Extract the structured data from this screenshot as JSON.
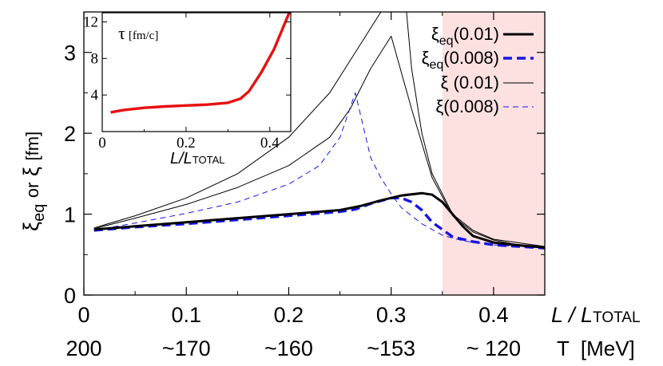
{
  "chart_data": [
    {
      "type": "line",
      "xlabel": "L / L",
      "xlabel_sub": "TOTAL",
      "temperature_label": "T  [MeV]",
      "temperature_ticks": [
        "200",
        "~170",
        "~160",
        "~153",
        "~ 120"
      ],
      "ylabel": {
        "xi": "ξ",
        "eq": "eq",
        "or": "or",
        "unit": "[fm]"
      },
      "xlim": [
        0,
        0.45
      ],
      "ylim": [
        0,
        3.5
      ],
      "xticks": [
        "0",
        "0.1",
        "0.2",
        "0.3",
        "0.4"
      ],
      "yticks": [
        "0",
        "1",
        "2",
        "3"
      ],
      "shaded_region": {
        "x_start": 0.35,
        "x_end": 0.45,
        "color": "#fde1e1"
      },
      "series": [
        {
          "name": "ξeq(0.01)",
          "legend_main": "ξ",
          "legend_sub": "eq",
          "legend_param": "(0.01)",
          "color": "#000000",
          "style": "solid-thick",
          "x": [
            0.01,
            0.05,
            0.1,
            0.15,
            0.2,
            0.25,
            0.27,
            0.29,
            0.31,
            0.33,
            0.34,
            0.35,
            0.36,
            0.37,
            0.38,
            0.4,
            0.42,
            0.45
          ],
          "y": [
            0.81,
            0.85,
            0.9,
            0.95,
            1.0,
            1.05,
            1.1,
            1.17,
            1.23,
            1.26,
            1.24,
            1.15,
            1.0,
            0.85,
            0.73,
            0.65,
            0.62,
            0.59
          ]
        },
        {
          "name": "ξeq(0.008)",
          "legend_main": "ξ",
          "legend_sub": "eq",
          "legend_param": "(0.008)",
          "color": "#1515e6",
          "style": "dash-thick",
          "x": [
            0.01,
            0.05,
            0.1,
            0.15,
            0.2,
            0.25,
            0.265,
            0.28,
            0.3,
            0.31,
            0.32,
            0.33,
            0.34,
            0.36,
            0.38,
            0.4,
            0.45
          ],
          "y": [
            0.8,
            0.84,
            0.88,
            0.93,
            0.98,
            1.03,
            1.06,
            1.13,
            1.2,
            1.2,
            1.15,
            1.05,
            0.9,
            0.72,
            0.66,
            0.62,
            0.58
          ]
        },
        {
          "name": "ξ (0.01)",
          "legend_main": "ξ",
          "legend_sub": "",
          "legend_param": " (0.01)",
          "color": "#000000",
          "style": "solid-thin",
          "x": [
            0.01,
            0.05,
            0.1,
            0.15,
            0.2,
            0.24,
            0.26,
            0.28,
            0.3,
            0.32,
            0.34,
            0.36,
            0.38,
            0.4,
            0.42,
            0.45
          ],
          "y": [
            0.82,
            0.95,
            1.12,
            1.33,
            1.6,
            1.95,
            2.3,
            2.8,
            3.2,
            2.3,
            1.45,
            0.98,
            0.78,
            0.68,
            0.63,
            0.59
          ]
        },
        {
          "name": "ξ (0.008)",
          "legend_main": "ξ",
          "legend_sub": "",
          "legend_param": "(0.008)",
          "color": "#1515e6",
          "style": "dash-thin",
          "x": [
            0.01,
            0.05,
            0.1,
            0.15,
            0.2,
            0.23,
            0.25,
            0.265,
            0.28,
            0.29,
            0.3,
            0.31,
            0.33,
            0.35,
            0.37,
            0.4,
            0.45
          ],
          "y": [
            0.8,
            0.89,
            1.01,
            1.15,
            1.37,
            1.6,
            1.95,
            2.5,
            1.7,
            1.45,
            1.25,
            1.08,
            0.88,
            0.74,
            0.67,
            0.62,
            0.58
          ]
        }
      ],
      "divergence_curve": {
        "description_free": true,
        "x": [
          0.01,
          0.05,
          0.1,
          0.15,
          0.2,
          0.24,
          0.27,
          0.29,
          0.3,
          0.305
        ],
        "y": [
          0.83,
          0.98,
          1.2,
          1.5,
          1.95,
          2.5,
          3.1,
          3.5,
          3.8,
          4.2
        ],
        "x2": [
          0.31,
          0.315,
          0.32,
          0.33,
          0.34,
          0.36,
          0.38,
          0.4,
          0.45
        ],
        "y2": [
          4.2,
          3.5,
          2.8,
          2.0,
          1.5,
          1.0,
          0.8,
          0.69,
          0.6
        ]
      }
    },
    {
      "type": "line",
      "title": "τ",
      "title_unit": "[fm/c]",
      "xlabel": "L/L",
      "xlabel_sub": "TOTAL",
      "xlim": [
        0,
        0.45
      ],
      "ylim": [
        0,
        13
      ],
      "xticks": [
        "0",
        "0.2",
        "0.4"
      ],
      "yticks": [
        "4",
        "8",
        "12"
      ],
      "series": [
        {
          "color": "#e81010",
          "x": [
            0.02,
            0.05,
            0.1,
            0.15,
            0.2,
            0.25,
            0.3,
            0.33,
            0.35,
            0.38,
            0.41,
            0.45
          ],
          "y": [
            2.1,
            2.35,
            2.6,
            2.75,
            2.85,
            2.95,
            3.15,
            3.6,
            4.4,
            6.5,
            9.0,
            13.4
          ]
        }
      ]
    }
  ]
}
